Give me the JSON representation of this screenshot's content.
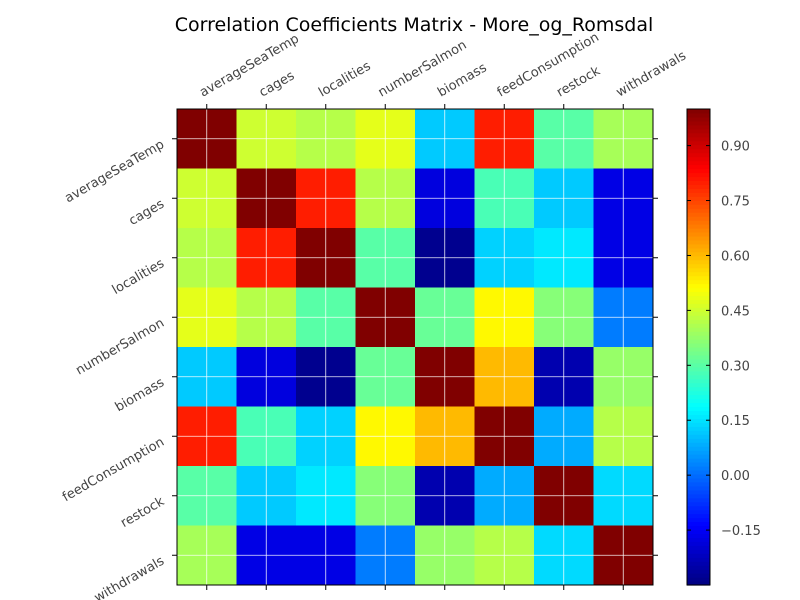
{
  "chart_data": {
    "type": "heatmap",
    "title": "Correlation Coefficients Matrix - More_og_Romsdal",
    "variables": [
      "averageSeaTemp",
      "cages",
      "localities",
      "numberSalmon",
      "biomass",
      "feedConsumption",
      "restock",
      "withdrawals"
    ],
    "matrix": [
      [
        1.0,
        0.45,
        0.42,
        0.48,
        0.12,
        0.8,
        0.3,
        0.4
      ],
      [
        0.45,
        1.0,
        0.8,
        0.42,
        -0.18,
        0.28,
        0.12,
        -0.17
      ],
      [
        0.42,
        0.8,
        1.0,
        0.3,
        -0.28,
        0.13,
        0.16,
        -0.17
      ],
      [
        0.48,
        0.42,
        0.3,
        1.0,
        0.32,
        0.52,
        0.36,
        0.02
      ],
      [
        0.12,
        -0.18,
        -0.28,
        0.32,
        1.0,
        0.6,
        -0.24,
        0.38
      ],
      [
        0.8,
        0.28,
        0.13,
        0.52,
        0.6,
        1.0,
        0.08,
        0.42
      ],
      [
        0.3,
        0.12,
        0.16,
        0.36,
        -0.24,
        0.08,
        1.0,
        0.14
      ],
      [
        0.4,
        -0.17,
        -0.17,
        0.02,
        0.38,
        0.42,
        0.14,
        1.0
      ]
    ],
    "colormap": "jet",
    "vmin": -0.3,
    "vmax": 1.0,
    "colorbar_ticks": [
      -0.15,
      0.0,
      0.15,
      0.3,
      0.45,
      0.6,
      0.75,
      0.9
    ],
    "colorbar_tick_labels": [
      "−0.15",
      "0.00",
      "0.15",
      "0.30",
      "0.45",
      "0.60",
      "0.75",
      "0.90"
    ],
    "grid": true
  }
}
